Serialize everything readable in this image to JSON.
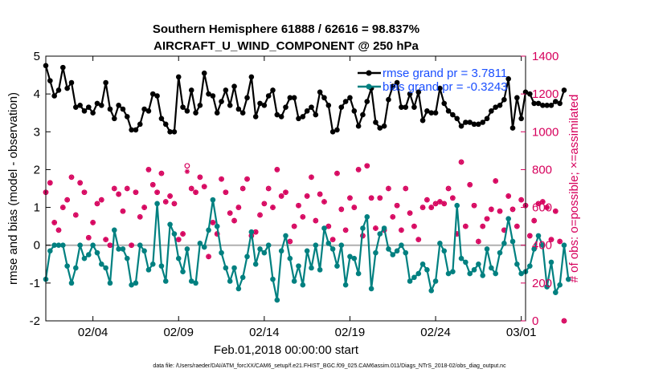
{
  "chart_data": {
    "type": "line",
    "title_line1": "Southern Hemisphere 61888 / 62616 = 98.837%",
    "title_line2": "AIRCRAFT_U_WIND_COMPONENT @ 250 hPa",
    "xlabel": "Feb.01,2018 00:00:00 start",
    "ylabel_left": "rmse and bias (model - observation)",
    "ylabel_right": "# of obs: o=possible; ×=assimilated",
    "footer": "data file: /Users/raeder/DAI/ATM_forcXX/CAM6_setup/f.e21.FHIST_BGC.f09_025.CAM6assim.011/Diags_NTrS_2018-02/obs_diag_output.nc",
    "x_ticks": [
      {
        "x": 3,
        "label": "02/04"
      },
      {
        "x": 8,
        "label": "02/09"
      },
      {
        "x": 13,
        "label": "02/14"
      },
      {
        "x": 18,
        "label": "02/19"
      },
      {
        "x": 23,
        "label": "02/24"
      },
      {
        "x": 28,
        "label": "03/01"
      }
    ],
    "left_ticks": [
      {
        "v": -2,
        "label": "-2"
      },
      {
        "v": -1,
        "label": "-1"
      },
      {
        "v": 0,
        "label": "0"
      },
      {
        "v": 1,
        "label": "1"
      },
      {
        "v": 2,
        "label": "2"
      },
      {
        "v": 3,
        "label": "3"
      },
      {
        "v": 4,
        "label": "4"
      },
      {
        "v": 5,
        "label": "5"
      }
    ],
    "right_ticks": [
      {
        "v": 0,
        "label": "0"
      },
      {
        "v": 200,
        "label": "200"
      },
      {
        "v": 400,
        "label": "400"
      },
      {
        "v": 600,
        "label": "600"
      },
      {
        "v": 800,
        "label": "800"
      },
      {
        "v": 1000,
        "label": "1000"
      },
      {
        "v": 1200,
        "label": "1200"
      },
      {
        "v": 1400,
        "label": "1400"
      }
    ],
    "xlim": [
      0.25,
      28.25
    ],
    "ylim_left": [
      -2,
      5
    ],
    "ylim_right": [
      0,
      1400
    ],
    "zero_line": 0,
    "legend": [
      {
        "name": "rmse grand pr = 3.7811",
        "color": "#000000"
      },
      {
        "name": "bias grand pr = -0.3243",
        "color": "#008080"
      }
    ],
    "colors": {
      "rmse": "#000000",
      "bias": "#008080",
      "obs": "#d6005c",
      "zero": "#b0b0b0"
    },
    "x_start": 0.25,
    "x_step": 0.25,
    "rmse": [
      4.75,
      4.35,
      3.95,
      4.1,
      4.7,
      4.15,
      4.3,
      3.65,
      3.7,
      3.55,
      3.65,
      3.5,
      3.75,
      3.7,
      4.3,
      3.6,
      3.35,
      3.7,
      3.6,
      3.4,
      3.05,
      3.05,
      3.2,
      3.6,
      3.55,
      4.0,
      3.95,
      3.35,
      3.2,
      3.0,
      3.0,
      4.45,
      3.65,
      3.55,
      4.1,
      3.5,
      3.7,
      4.55,
      4.0,
      3.95,
      3.5,
      3.8,
      4.1,
      3.7,
      4.2,
      3.6,
      3.5,
      3.9,
      4.45,
      3.4,
      3.75,
      3.7,
      3.95,
      4.1,
      3.45,
      3.4,
      3.65,
      3.9,
      3.9,
      3.35,
      3.4,
      3.55,
      3.65,
      3.45,
      4.05,
      3.9,
      3.7,
      3.0,
      3.05,
      3.65,
      3.8,
      3.9,
      3.55,
      3.15,
      3.45,
      3.8,
      4.15,
      3.25,
      3.1,
      3.15,
      3.85,
      4.2,
      4.3,
      3.65,
      3.65,
      4.0,
      3.65,
      4.05,
      3.3,
      3.55,
      3.5,
      3.5,
      4.15,
      3.75,
      3.55,
      3.45,
      3.35,
      3.15,
      3.25,
      3.25,
      3.2,
      3.2,
      3.25,
      3.35,
      3.55,
      3.65,
      3.7,
      3.85,
      4.4,
      3.1,
      3.9,
      3.35,
      4.05,
      4.0,
      3.75,
      3.75,
      3.7,
      3.7,
      3.7,
      3.8,
      3.75,
      4.1
    ],
    "bias": [
      -0.9,
      -0.15,
      0.0,
      0.0,
      0.0,
      -0.55,
      -1.0,
      -0.6,
      0.0,
      -0.35,
      -0.25,
      0.0,
      -0.2,
      -0.5,
      -0.6,
      -1.0,
      0.4,
      -0.1,
      -0.1,
      -0.35,
      -1.05,
      -1.0,
      0.0,
      -0.15,
      -0.65,
      -0.5,
      1.1,
      -0.55,
      -0.95,
      0.55,
      0.3,
      -0.35,
      -0.7,
      -0.1,
      -0.95,
      -1.0,
      0.05,
      -0.05,
      0.4,
      1.2,
      0.5,
      -0.2,
      -0.6,
      -0.95,
      -0.6,
      -1.15,
      -0.85,
      -0.3,
      0.35,
      -0.5,
      -0.1,
      -0.2,
      0.0,
      -0.9,
      -1.45,
      -0.15,
      0.25,
      -0.35,
      -0.95,
      -0.55,
      -1.05,
      -0.15,
      -0.6,
      0.0,
      -0.65,
      0.45,
      0.05,
      -0.1,
      -0.55,
      0.0,
      -1.05,
      -0.3,
      -0.35,
      -0.75,
      0.45,
      0.75,
      -1.15,
      -0.2,
      0.3,
      0.45,
      -0.1,
      -0.25,
      -0.15,
      0.0,
      -0.2,
      -0.95,
      -0.85,
      -0.75,
      -0.5,
      -0.65,
      -1.2,
      -0.95,
      0.05,
      -0.15,
      -0.75,
      -0.7,
      1.05,
      -0.35,
      -0.45,
      -0.75,
      -0.65,
      -0.5,
      -0.8,
      -0.1,
      -0.6,
      -0.75,
      -0.2,
      0.05,
      0.7,
      0.1,
      -0.5,
      -0.75,
      -0.7,
      -0.55,
      -0.1,
      0.25,
      0.0,
      -1.1,
      -0.45,
      -1.25,
      -1.05,
      0.0,
      -0.9
    ],
    "obs_possible": [
      680,
      730,
      520,
      480,
      600,
      640,
      760,
      560,
      730,
      680,
      440,
      520,
      620,
      640,
      430,
      400,
      700,
      670,
      580,
      700,
      400,
      680,
      550,
      600,
      800,
      720,
      680,
      780,
      630,
      660,
      620,
      430,
      460,
      820,
      700,
      680,
      760,
      710,
      340,
      520,
      460,
      750,
      680,
      570,
      530,
      600,
      700,
      750,
      450,
      470,
      560,
      620,
      700,
      600,
      800,
      660,
      680,
      420,
      500,
      610,
      550,
      660,
      760,
      530,
      670,
      630,
      500,
      430,
      780,
      590,
      480,
      650,
      600,
      800,
      450,
      820,
      650,
      490,
      650,
      480,
      700,
      550,
      610,
      480,
      700,
      570,
      500,
      430,
      600,
      640,
      600,
      620,
      630,
      620,
      700,
      650,
      460,
      840,
      500,
      720,
      610,
      420,
      500,
      540,
      590,
      740,
      580,
      480,
      660,
      590,
      500,
      640,
      610,
      450,
      530,
      620,
      630,
      600,
      430,
      580,
      420,
      0
    ],
    "obs_assimilated": [
      680,
      730,
      520,
      480,
      600,
      640,
      760,
      560,
      730,
      680,
      440,
      520,
      620,
      640,
      430,
      400,
      700,
      670,
      580,
      700,
      400,
      680,
      550,
      600,
      800,
      720,
      680,
      780,
      630,
      660,
      620,
      430,
      460,
      790,
      700,
      680,
      760,
      710,
      340,
      520,
      460,
      750,
      680,
      570,
      530,
      600,
      700,
      750,
      450,
      470,
      560,
      620,
      700,
      600,
      800,
      660,
      680,
      420,
      500,
      610,
      550,
      660,
      760,
      530,
      670,
      630,
      500,
      430,
      780,
      590,
      480,
      650,
      600,
      800,
      450,
      820,
      650,
      490,
      650,
      480,
      700,
      550,
      610,
      480,
      700,
      570,
      500,
      430,
      600,
      640,
      600,
      620,
      630,
      620,
      700,
      650,
      460,
      840,
      500,
      720,
      610,
      420,
      500,
      540,
      590,
      740,
      580,
      480,
      660,
      590,
      500,
      640,
      610,
      450,
      530,
      620,
      630,
      600,
      430,
      580,
      420,
      0
    ]
  }
}
